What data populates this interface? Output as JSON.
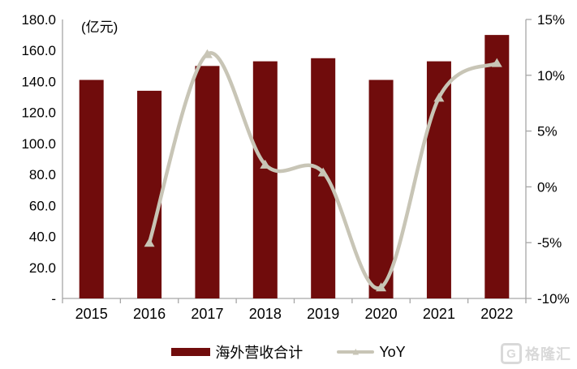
{
  "chart_data": {
    "type": "bar",
    "subtype": "bar-line-combo",
    "title": "",
    "unit_label": "(亿元)",
    "categories": [
      "2015",
      "2016",
      "2017",
      "2018",
      "2019",
      "2020",
      "2021",
      "2022"
    ],
    "series": [
      {
        "name": "海外营收合计",
        "type": "bar",
        "axis": "left",
        "color": "#700C0C",
        "values": [
          141,
          134,
          150,
          153,
          155,
          141,
          153,
          170
        ]
      },
      {
        "name": "YoY",
        "type": "line",
        "axis": "right",
        "color": "#C8C5B6",
        "values": [
          null,
          -5.0,
          11.9,
          2.0,
          1.3,
          -9.0,
          8.0,
          11.1
        ]
      }
    ],
    "left_axis": {
      "min": 0,
      "max": 180,
      "step": 20,
      "tick_labels": [
        "180.0",
        "160.0",
        "140.0",
        "120.0",
        "100.0",
        "80.0",
        "60.0",
        "40.0",
        "20.0",
        "-"
      ]
    },
    "right_axis": {
      "min": -10,
      "max": 15,
      "step": 5,
      "tick_labels": [
        "15%",
        "10%",
        "5%",
        "0%",
        "-5%",
        "-10%"
      ]
    },
    "legend": [
      {
        "label": "海外营收合计",
        "marker": "bar-swatch"
      },
      {
        "label": "YoY",
        "marker": "line-triangle-swatch"
      }
    ],
    "grid": false,
    "axis_line_color": "#A6A6A6",
    "text_color": "#000000"
  },
  "watermark": {
    "logo": "G",
    "text": "格隆汇"
  }
}
